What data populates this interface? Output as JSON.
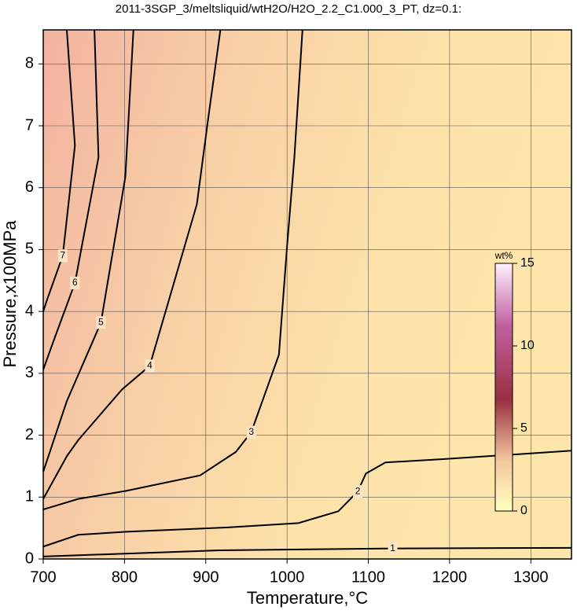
{
  "chart_data": {
    "type": "contour",
    "title": "2011-3SGP_3/meltsliquid/wtH2O/H2O_2.2_C1.000_3_PT, dz=0.1:",
    "x_label": "Temperature,°C",
    "y_label": "Pressure,x100MPa",
    "xlim": [
      700,
      1350
    ],
    "ylim": [
      0,
      8.55
    ],
    "xticks": [
      700,
      800,
      900,
      1000,
      1100,
      1200,
      1300
    ],
    "yticks": [
      0,
      1,
      2,
      3,
      4,
      5,
      6,
      7,
      8
    ],
    "grid": true,
    "series": [
      {
        "name": "1",
        "color": "#000000",
        "x": [
          700,
          917,
          1130,
          1350
        ],
        "y": [
          0.04,
          0.14,
          0.17,
          0.18
        ]
      },
      {
        "name": "2",
        "color": "#000000",
        "x": [
          700,
          743,
          802,
          927,
          1014,
          1063,
          1087,
          1097,
          1121,
          1188,
          1305,
          1350
        ],
        "y": [
          0.2,
          0.39,
          0.44,
          0.51,
          0.58,
          0.77,
          1.09,
          1.38,
          1.56,
          1.61,
          1.71,
          1.75
        ]
      },
      {
        "name": "3",
        "color": "#000000",
        "x": [
          700,
          743,
          802,
          893,
          937,
          956,
          990,
          1000,
          1009,
          1019
        ],
        "y": [
          0.8,
          0.97,
          1.1,
          1.35,
          1.73,
          2.05,
          3.3,
          5.05,
          6.49,
          8.55
        ]
      },
      {
        "name": "4",
        "color": "#000000",
        "x": [
          700,
          729,
          743,
          797,
          831,
          889,
          903,
          918
        ],
        "y": [
          0.97,
          1.66,
          1.92,
          2.74,
          3.12,
          5.73,
          7.12,
          8.55
        ]
      },
      {
        "name": "5",
        "color": "#000000",
        "x": [
          700,
          729,
          771,
          801,
          811
        ],
        "y": [
          1.41,
          2.55,
          3.82,
          6.17,
          8.55
        ]
      },
      {
        "name": "6",
        "color": "#000000",
        "x": [
          700,
          714,
          739,
          768,
          763
        ],
        "y": [
          3.06,
          3.57,
          4.46,
          6.49,
          8.55
        ]
      },
      {
        "name": "7",
        "color": "#000000",
        "x": [
          700,
          705,
          724,
          739,
          729
        ],
        "y": [
          4.0,
          4.2,
          4.9,
          6.68,
          8.55
        ]
      }
    ],
    "colorbar": {
      "label": "wt%",
      "lim": [
        0,
        15
      ],
      "ticks": [
        0,
        5,
        10,
        15
      ]
    }
  }
}
